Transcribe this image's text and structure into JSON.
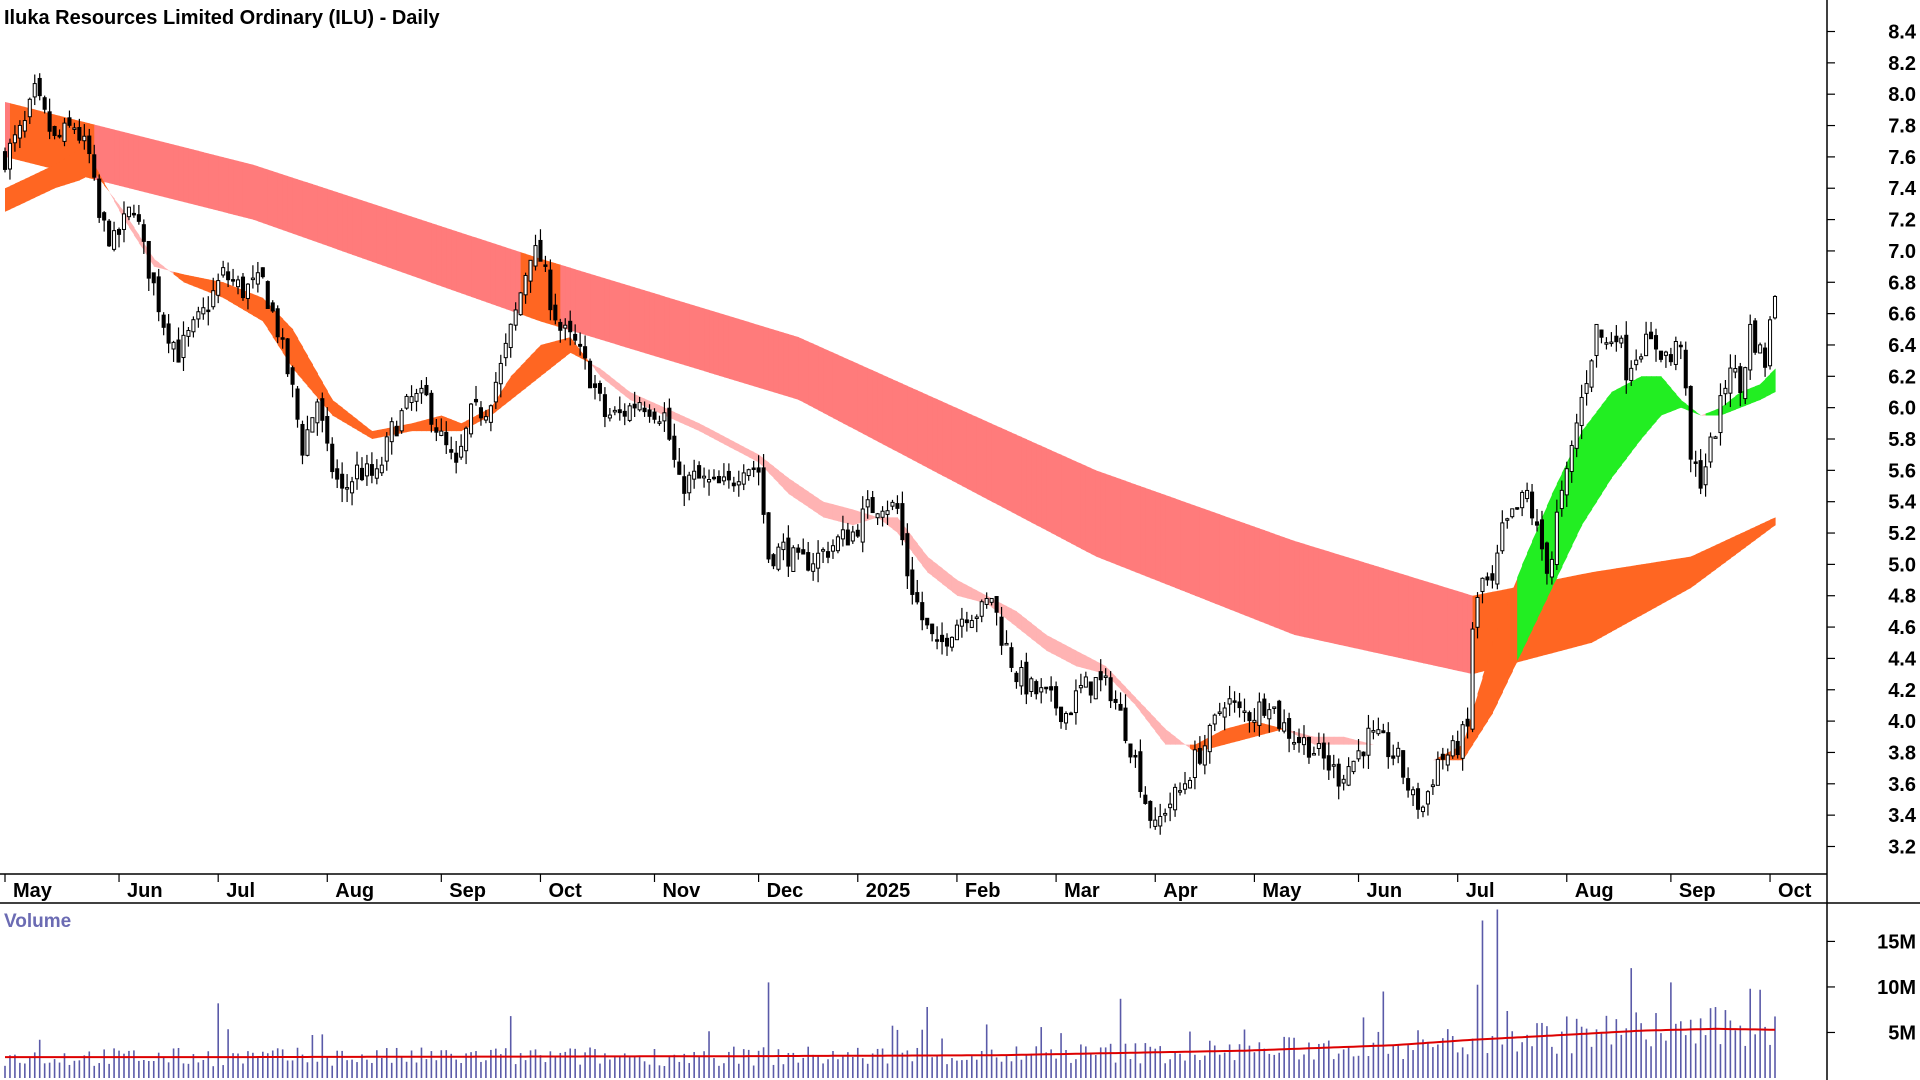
{
  "chart_data": {
    "type": "candlestick",
    "title": "Iluka Resources Limited Ordinary (ILU) - Daily",
    "price_axis": {
      "ylim": [
        3.05,
        8.55
      ],
      "ticks": [
        "8.4",
        "8.2",
        "8.0",
        "7.8",
        "7.6",
        "7.4",
        "7.2",
        "7.0",
        "6.8",
        "6.6",
        "6.4",
        "6.2",
        "6.0",
        "5.8",
        "5.6",
        "5.4",
        "5.2",
        "5.0",
        "4.8",
        "4.6",
        "4.4",
        "4.2",
        "4.0",
        "3.8",
        "3.6",
        "3.4",
        "3.2"
      ]
    },
    "x_axis": {
      "day_range": [
        0,
        357
      ],
      "ticks": [
        {
          "label": "May",
          "day": 0
        },
        {
          "label": "Jun",
          "day": 23
        },
        {
          "label": "Jul",
          "day": 43
        },
        {
          "label": "Aug",
          "day": 65
        },
        {
          "label": "Sep",
          "day": 88
        },
        {
          "label": "Oct",
          "day": 108
        },
        {
          "label": "Nov",
          "day": 131
        },
        {
          "label": "Dec",
          "day": 152
        },
        {
          "label": "2025",
          "day": 172
        },
        {
          "label": "Feb",
          "day": 192
        },
        {
          "label": "Mar",
          "day": 212
        },
        {
          "label": "Apr",
          "day": 232
        },
        {
          "label": "May",
          "day": 252
        },
        {
          "label": "Jun",
          "day": 273
        },
        {
          "label": "Jul",
          "day": 293
        },
        {
          "label": "Aug",
          "day": 315
        },
        {
          "label": "Sep",
          "day": 336
        },
        {
          "label": "Oct",
          "day": 356
        }
      ]
    },
    "price_anchors": [
      [
        0,
        7.6
      ],
      [
        4,
        7.8
      ],
      [
        6,
        8.0
      ],
      [
        10,
        7.7
      ],
      [
        14,
        7.8
      ],
      [
        17,
        7.6
      ],
      [
        19,
        7.2
      ],
      [
        22,
        7.05
      ],
      [
        26,
        7.3
      ],
      [
        28,
        7.0
      ],
      [
        32,
        6.55
      ],
      [
        35,
        6.35
      ],
      [
        40,
        6.6
      ],
      [
        44,
        6.85
      ],
      [
        48,
        6.75
      ],
      [
        52,
        6.8
      ],
      [
        55,
        6.5
      ],
      [
        58,
        6.1
      ],
      [
        60,
        5.75
      ],
      [
        63,
        6.05
      ],
      [
        65,
        5.7
      ],
      [
        68,
        5.45
      ],
      [
        71,
        5.6
      ],
      [
        75,
        5.55
      ],
      [
        78,
        5.85
      ],
      [
        82,
        6.05
      ],
      [
        85,
        6.05
      ],
      [
        88,
        5.8
      ],
      [
        91,
        5.6
      ],
      [
        94,
        5.95
      ],
      [
        97,
        6.0
      ],
      [
        100,
        6.25
      ],
      [
        103,
        6.6
      ],
      [
        106,
        7.0
      ],
      [
        108,
        6.95
      ],
      [
        110,
        6.7
      ],
      [
        112,
        6.5
      ],
      [
        115,
        6.4
      ],
      [
        118,
        6.2
      ],
      [
        121,
        5.95
      ],
      [
        124,
        5.95
      ],
      [
        128,
        6.05
      ],
      [
        133,
        5.95
      ],
      [
        136,
        5.5
      ],
      [
        139,
        5.55
      ],
      [
        143,
        5.5
      ],
      [
        146,
        5.5
      ],
      [
        149,
        5.65
      ],
      [
        152,
        5.6
      ],
      [
        154,
        5.05
      ],
      [
        157,
        5.1
      ],
      [
        160,
        5.0
      ],
      [
        164,
        5.05
      ],
      [
        168,
        5.15
      ],
      [
        171,
        5.2
      ],
      [
        174,
        5.35
      ],
      [
        177,
        5.4
      ],
      [
        180,
        5.35
      ],
      [
        182,
        4.95
      ],
      [
        185,
        4.65
      ],
      [
        188,
        4.45
      ],
      [
        191,
        4.6
      ],
      [
        194,
        4.7
      ],
      [
        197,
        4.7
      ],
      [
        199,
        4.8
      ],
      [
        201,
        4.55
      ],
      [
        204,
        4.3
      ],
      [
        207,
        4.2
      ],
      [
        210,
        4.15
      ],
      [
        214,
        4.05
      ],
      [
        217,
        4.2
      ],
      [
        220,
        4.25
      ],
      [
        223,
        4.2
      ],
      [
        226,
        3.95
      ],
      [
        228,
        3.75
      ],
      [
        230,
        3.5
      ],
      [
        232,
        3.3
      ],
      [
        234,
        3.45
      ],
      [
        237,
        3.55
      ],
      [
        240,
        3.75
      ],
      [
        243,
        3.9
      ],
      [
        246,
        4.15
      ],
      [
        249,
        4.05
      ],
      [
        252,
        4.05
      ],
      [
        255,
        4.15
      ],
      [
        257,
        4.0
      ],
      [
        260,
        3.9
      ],
      [
        263,
        3.85
      ],
      [
        266,
        3.75
      ],
      [
        269,
        3.65
      ],
      [
        272,
        3.75
      ],
      [
        275,
        3.9
      ],
      [
        278,
        3.85
      ],
      [
        281,
        3.75
      ],
      [
        284,
        3.5
      ],
      [
        286,
        3.45
      ],
      [
        289,
        3.75
      ],
      [
        292,
        3.8
      ],
      [
        295,
        3.95
      ],
      [
        296,
        4.6
      ],
      [
        298,
        4.9
      ],
      [
        300,
        4.85
      ],
      [
        302,
        5.2
      ],
      [
        305,
        5.35
      ],
      [
        307,
        5.45
      ],
      [
        309,
        5.2
      ],
      [
        311,
        5.0
      ],
      [
        312,
        5.05
      ],
      [
        313,
        5.3
      ],
      [
        315,
        5.55
      ],
      [
        317,
        5.9
      ],
      [
        319,
        6.2
      ],
      [
        321,
        6.5
      ],
      [
        323,
        6.4
      ],
      [
        325,
        6.5
      ],
      [
        327,
        6.25
      ],
      [
        330,
        6.4
      ],
      [
        333,
        6.4
      ],
      [
        336,
        6.3
      ],
      [
        338,
        6.45
      ],
      [
        340,
        5.65
      ],
      [
        342,
        5.55
      ],
      [
        344,
        5.75
      ],
      [
        346,
        6.0
      ],
      [
        348,
        6.3
      ],
      [
        350,
        6.1
      ],
      [
        352,
        6.5
      ],
      [
        354,
        6.35
      ],
      [
        355,
        6.3
      ],
      [
        357,
        6.75
      ]
    ],
    "emas": {
      "long": {
        "fast": [
          [
            0,
            7.95
          ],
          [
            50,
            7.55
          ],
          [
            108,
            6.95
          ],
          [
            160,
            6.45
          ],
          [
            220,
            5.6
          ],
          [
            260,
            5.15
          ],
          [
            296,
            4.8
          ],
          [
            320,
            4.95
          ],
          [
            340,
            5.05
          ],
          [
            357,
            5.3
          ]
        ],
        "slow": [
          [
            0,
            7.6
          ],
          [
            50,
            7.2
          ],
          [
            108,
            6.55
          ],
          [
            160,
            6.05
          ],
          [
            220,
            5.05
          ],
          [
            260,
            4.55
          ],
          [
            296,
            4.3
          ],
          [
            320,
            4.5
          ],
          [
            340,
            4.85
          ],
          [
            357,
            5.25
          ]
        ]
      },
      "short": {
        "fast": [
          [
            0,
            7.4
          ],
          [
            10,
            7.55
          ],
          [
            15,
            7.65
          ],
          [
            18,
            7.55
          ],
          [
            24,
            7.2
          ],
          [
            30,
            6.9
          ],
          [
            36,
            6.85
          ],
          [
            44,
            6.8
          ],
          [
            52,
            6.7
          ],
          [
            58,
            6.5
          ],
          [
            66,
            6.05
          ],
          [
            74,
            5.85
          ],
          [
            82,
            5.9
          ],
          [
            88,
            5.95
          ],
          [
            92,
            5.9
          ],
          [
            98,
            6.0
          ],
          [
            102,
            6.2
          ],
          [
            108,
            6.4
          ],
          [
            114,
            6.45
          ],
          [
            120,
            6.2
          ],
          [
            126,
            6.05
          ],
          [
            133,
            5.95
          ],
          [
            140,
            5.85
          ],
          [
            146,
            5.75
          ],
          [
            152,
            5.65
          ],
          [
            158,
            5.45
          ],
          [
            165,
            5.3
          ],
          [
            171,
            5.25
          ],
          [
            176,
            5.3
          ],
          [
            180,
            5.2
          ],
          [
            186,
            4.95
          ],
          [
            192,
            4.8
          ],
          [
            198,
            4.75
          ],
          [
            204,
            4.6
          ],
          [
            210,
            4.45
          ],
          [
            216,
            4.35
          ],
          [
            222,
            4.3
          ],
          [
            228,
            4.1
          ],
          [
            234,
            3.85
          ],
          [
            240,
            3.85
          ],
          [
            246,
            3.95
          ],
          [
            252,
            4.0
          ],
          [
            258,
            3.95
          ],
          [
            264,
            3.85
          ],
          [
            270,
            3.85
          ],
          [
            276,
            3.85
          ],
          [
            282,
            3.8
          ],
          [
            288,
            3.75
          ],
          [
            294,
            3.85
          ],
          [
            300,
            4.5
          ],
          [
            306,
            5.0
          ],
          [
            312,
            5.45
          ],
          [
            318,
            5.85
          ],
          [
            324,
            6.1
          ],
          [
            330,
            6.2
          ],
          [
            334,
            6.2
          ],
          [
            338,
            6.05
          ],
          [
            342,
            5.95
          ],
          [
            346,
            6.0
          ],
          [
            350,
            6.1
          ],
          [
            354,
            6.15
          ],
          [
            357,
            6.25
          ]
        ],
        "slow": [
          [
            0,
            7.25
          ],
          [
            10,
            7.4
          ],
          [
            15,
            7.45
          ],
          [
            18,
            7.5
          ],
          [
            24,
            7.25
          ],
          [
            30,
            6.95
          ],
          [
            36,
            6.8
          ],
          [
            44,
            6.7
          ],
          [
            52,
            6.55
          ],
          [
            58,
            6.25
          ],
          [
            66,
            5.95
          ],
          [
            74,
            5.8
          ],
          [
            82,
            5.85
          ],
          [
            88,
            5.85
          ],
          [
            92,
            5.85
          ],
          [
            98,
            5.95
          ],
          [
            102,
            6.05
          ],
          [
            108,
            6.2
          ],
          [
            114,
            6.35
          ],
          [
            120,
            6.25
          ],
          [
            126,
            6.1
          ],
          [
            133,
            6.0
          ],
          [
            140,
            5.9
          ],
          [
            146,
            5.8
          ],
          [
            152,
            5.7
          ],
          [
            158,
            5.55
          ],
          [
            165,
            5.4
          ],
          [
            171,
            5.35
          ],
          [
            176,
            5.3
          ],
          [
            180,
            5.3
          ],
          [
            186,
            5.05
          ],
          [
            192,
            4.9
          ],
          [
            198,
            4.8
          ],
          [
            204,
            4.7
          ],
          [
            210,
            4.55
          ],
          [
            216,
            4.45
          ],
          [
            222,
            4.35
          ],
          [
            228,
            4.15
          ],
          [
            234,
            3.95
          ],
          [
            240,
            3.8
          ],
          [
            246,
            3.85
          ],
          [
            252,
            3.9
          ],
          [
            258,
            3.95
          ],
          [
            264,
            3.9
          ],
          [
            270,
            3.9
          ],
          [
            276,
            3.85
          ],
          [
            282,
            3.8
          ],
          [
            288,
            3.75
          ],
          [
            294,
            3.75
          ],
          [
            300,
            4.05
          ],
          [
            306,
            4.45
          ],
          [
            312,
            4.85
          ],
          [
            318,
            5.25
          ],
          [
            324,
            5.55
          ],
          [
            330,
            5.8
          ],
          [
            334,
            5.95
          ],
          [
            338,
            6.0
          ],
          [
            342,
            5.95
          ],
          [
            346,
            5.95
          ],
          [
            350,
            6.0
          ],
          [
            354,
            6.05
          ],
          [
            357,
            6.1
          ]
        ]
      }
    },
    "volume": {
      "title": "Volume",
      "ylim": [
        0,
        19
      ],
      "ticks": [
        "15M",
        "10M",
        "5M"
      ],
      "spikes": [
        [
          7,
          4.2
        ],
        [
          43,
          8.2
        ],
        [
          102,
          6.8
        ],
        [
          154,
          10.5
        ],
        [
          186,
          7.8
        ],
        [
          225,
          8.7
        ],
        [
          278,
          9.5
        ],
        [
          298,
          17.3
        ],
        [
          301,
          18.5
        ],
        [
          317,
          6.5
        ],
        [
          336,
          10.5
        ],
        [
          352,
          9.8
        ]
      ],
      "ma_line": [
        [
          0,
          2.3
        ],
        [
          50,
          2.3
        ],
        [
          100,
          2.35
        ],
        [
          150,
          2.4
        ],
        [
          200,
          2.5
        ],
        [
          250,
          3.0
        ],
        [
          280,
          3.6
        ],
        [
          296,
          4.2
        ],
        [
          310,
          4.6
        ],
        [
          330,
          5.2
        ],
        [
          345,
          5.4
        ],
        [
          357,
          5.3
        ]
      ]
    },
    "colors": {
      "up_candle": "#ffffff",
      "down_candle": "#000000",
      "long_ribbon_bear": "#ff7b7b",
      "long_ribbon_mixed": "#ff6622",
      "short_ribbon_bull": "#22ee22",
      "short_ribbon_mixed": "#ff6622",
      "short_ribbon_bear": "#ffb3b3",
      "volume_bar": "#5a5aa8",
      "volume_ma": "#dd0000"
    }
  }
}
